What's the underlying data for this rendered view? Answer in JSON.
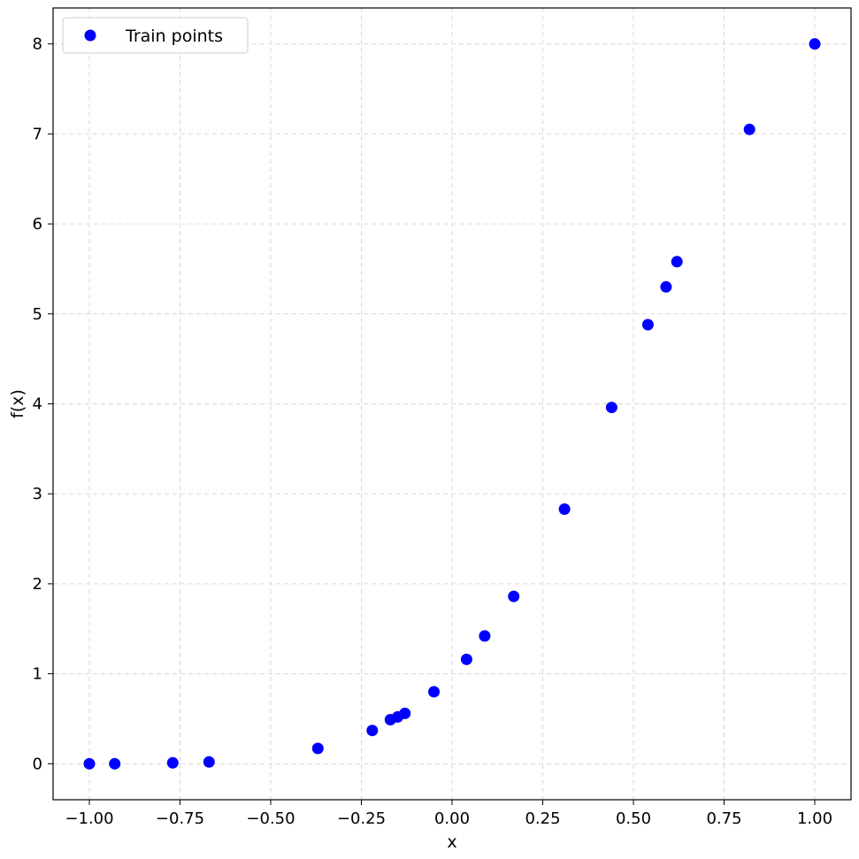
{
  "chart_data": {
    "type": "scatter",
    "xlabel": "x",
    "ylabel": "f(x)",
    "xlim": [
      -1.1,
      1.1
    ],
    "ylim": [
      -0.4,
      8.4
    ],
    "xticks": [
      -1.0,
      -0.75,
      -0.5,
      -0.25,
      0.0,
      0.25,
      0.5,
      0.75,
      1.0
    ],
    "xtick_labels": [
      "−1.00",
      "−0.75",
      "−0.50",
      "−0.25",
      "0.00",
      "0.25",
      "0.50",
      "0.75",
      "1.00"
    ],
    "yticks": [
      0,
      1,
      2,
      3,
      4,
      5,
      6,
      7,
      8
    ],
    "ytick_labels": [
      "0",
      "1",
      "2",
      "3",
      "4",
      "5",
      "6",
      "7",
      "8"
    ],
    "grid": true,
    "legend_position": "top-left",
    "series": [
      {
        "name": "Train points",
        "color": "#0000ff",
        "marker": "circle",
        "points": [
          {
            "x": -1.0,
            "y": 0.0
          },
          {
            "x": -0.93,
            "y": 0.0
          },
          {
            "x": -0.77,
            "y": 0.01
          },
          {
            "x": -0.67,
            "y": 0.02
          },
          {
            "x": -0.37,
            "y": 0.17
          },
          {
            "x": -0.22,
            "y": 0.37
          },
          {
            "x": -0.17,
            "y": 0.49
          },
          {
            "x": -0.15,
            "y": 0.52
          },
          {
            "x": -0.13,
            "y": 0.56
          },
          {
            "x": -0.05,
            "y": 0.8
          },
          {
            "x": 0.04,
            "y": 1.16
          },
          {
            "x": 0.09,
            "y": 1.42
          },
          {
            "x": 0.17,
            "y": 1.86
          },
          {
            "x": 0.31,
            "y": 2.83
          },
          {
            "x": 0.44,
            "y": 3.96
          },
          {
            "x": 0.54,
            "y": 4.88
          },
          {
            "x": 0.59,
            "y": 5.3
          },
          {
            "x": 0.62,
            "y": 5.58
          },
          {
            "x": 0.82,
            "y": 7.05
          },
          {
            "x": 1.0,
            "y": 8.0
          }
        ]
      }
    ]
  }
}
